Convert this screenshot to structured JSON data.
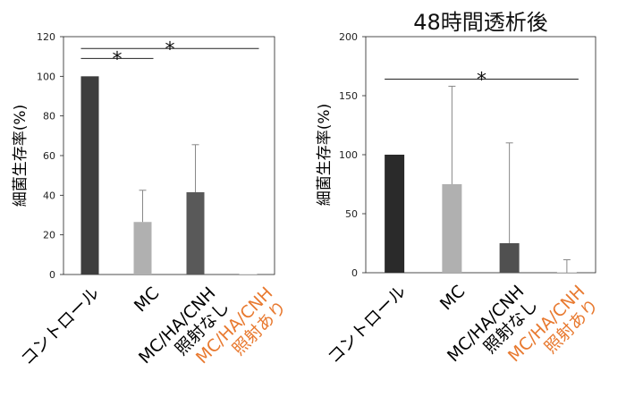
{
  "colors": {
    "highlight": "#e8792f"
  },
  "chart_data": [
    {
      "type": "bar",
      "title": "",
      "ylabel": "細菌生存率(%)",
      "ylim": [
        0,
        120
      ],
      "yticks": [
        0,
        20,
        40,
        60,
        80,
        100,
        120
      ],
      "categories": [
        {
          "lines": [
            "コントロール"
          ],
          "highlight": false
        },
        {
          "lines": [
            "MC"
          ],
          "highlight": false
        },
        {
          "lines": [
            "MC/HA/CNH",
            "照射なし"
          ],
          "highlight": false
        },
        {
          "lines": [
            "MC/HA/CNH",
            "照射あり"
          ],
          "highlight": true
        }
      ],
      "values": [
        100,
        26.5,
        41.5,
        0
      ],
      "errors": [
        0,
        16,
        24,
        0
      ],
      "bar_colors": [
        "#3d3d3d",
        "#b0b0b0",
        "#595959",
        "#c9c9c9"
      ],
      "significance": [
        {
          "from": 0,
          "to": 1,
          "y": 109,
          "label": "*"
        },
        {
          "from": 0,
          "to": 3,
          "y": 114,
          "label": "*"
        }
      ],
      "grid": false
    },
    {
      "type": "bar",
      "title": "48時間透析後",
      "ylabel": "細菌生存率(%)",
      "ylim": [
        0,
        200
      ],
      "yticks": [
        0,
        50,
        100,
        150,
        200
      ],
      "categories": [
        {
          "lines": [
            "コントロール"
          ],
          "highlight": false
        },
        {
          "lines": [
            "MC"
          ],
          "highlight": false
        },
        {
          "lines": [
            "MC/HA/CNH",
            "照射なし"
          ],
          "highlight": false
        },
        {
          "lines": [
            "MC/HA/CNH",
            "照射あり"
          ],
          "highlight": true
        }
      ],
      "values": [
        100,
        75,
        25,
        0
      ],
      "errors": [
        0,
        83,
        85,
        11
      ],
      "bar_colors": [
        "#2a2a2a",
        "#b0b0b0",
        "#505050",
        "#c9c9c9"
      ],
      "significance": [
        {
          "from": 0,
          "to": 3,
          "y": 164,
          "label": "*"
        }
      ],
      "grid": false
    }
  ]
}
